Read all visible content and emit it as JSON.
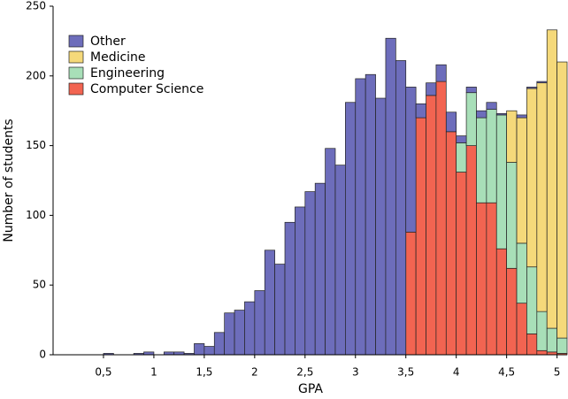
{
  "chart_data": {
    "type": "histogram",
    "xlabel": "GPA",
    "ylabel": "Number of students",
    "bins": [
      0,
      0.1,
      0.2,
      0.3,
      0.4,
      0.5,
      0.6,
      0.7,
      0.8,
      0.9,
      1,
      1.1,
      1.2,
      1.3,
      1.4,
      1.5,
      1.6,
      1.7,
      1.8,
      1.9,
      2,
      2.1,
      2.2,
      2.3,
      2.4,
      2.5,
      2.6,
      2.7,
      2.8,
      2.9,
      3,
      3.1,
      3.2,
      3.3,
      3.4,
      3.5,
      3.6,
      3.7,
      3.8,
      3.9,
      4,
      4.1,
      4.2,
      4.3,
      4.4,
      4.5,
      4.6,
      4.7,
      4.8,
      4.9,
      5,
      5.1
    ],
    "series": [
      {
        "name": "Computer Science",
        "color": "#f26451",
        "values": [
          0,
          0,
          0,
          0,
          0,
          0,
          0,
          0,
          0,
          0,
          0,
          0,
          0,
          0,
          0,
          0,
          0,
          0,
          0,
          0,
          0,
          0,
          0,
          0,
          0,
          0,
          0,
          0,
          0,
          0,
          0,
          0,
          0,
          0,
          0,
          88,
          170,
          186,
          196,
          160,
          131,
          150,
          109,
          109,
          76,
          62,
          37,
          15,
          3,
          2,
          1
        ]
      },
      {
        "name": "Engineering",
        "color": "#a8dfb8",
        "values": [
          0,
          0,
          0,
          0,
          0,
          0,
          0,
          0,
          0,
          0,
          0,
          0,
          0,
          0,
          0,
          0,
          0,
          0,
          0,
          0,
          0,
          0,
          0,
          0,
          0,
          0,
          0,
          0,
          0,
          0,
          0,
          0,
          0,
          0,
          0,
          0,
          0,
          0,
          0,
          0,
          21,
          38,
          61,
          67,
          96,
          76,
          43,
          48,
          28,
          17,
          11
        ]
      },
      {
        "name": "Medicine",
        "color": "#f5d97a",
        "values": [
          0,
          0,
          0,
          0,
          0,
          0,
          0,
          0,
          0,
          0,
          0,
          0,
          0,
          0,
          0,
          0,
          0,
          0,
          0,
          0,
          0,
          0,
          0,
          0,
          0,
          0,
          0,
          0,
          0,
          0,
          0,
          0,
          0,
          0,
          0,
          0,
          0,
          0,
          0,
          0,
          0,
          0,
          0,
          0,
          0,
          37,
          90,
          128,
          164,
          214,
          198
        ]
      },
      {
        "name": "Other",
        "color": "#6d6dbb",
        "values": [
          0,
          0,
          0,
          0,
          0,
          1,
          0,
          0,
          1,
          2,
          0,
          2,
          2,
          1,
          8,
          6,
          16,
          30,
          32,
          38,
          46,
          75,
          65,
          95,
          106,
          117,
          123,
          148,
          136,
          181,
          198,
          201,
          184,
          227,
          211,
          104,
          10,
          9,
          12,
          14,
          5,
          4,
          5,
          5,
          1,
          0,
          2,
          1,
          1,
          0,
          0
        ]
      }
    ],
    "xlim": [
      0,
      5.1
    ],
    "xticks": [
      {
        "value": 0.5,
        "label": "0,5"
      },
      1,
      {
        "value": 1.5,
        "label": "1,5"
      },
      2,
      {
        "value": 2.5,
        "label": "2,5"
      },
      3,
      {
        "value": 3.5,
        "label": "3,5"
      },
      4,
      {
        "value": 4.5,
        "label": "4,5"
      },
      5
    ],
    "ylim": [
      0,
      250
    ],
    "yticks": [
      0,
      50,
      100,
      150,
      200,
      250
    ],
    "legend": "upper left",
    "grid": false
  }
}
